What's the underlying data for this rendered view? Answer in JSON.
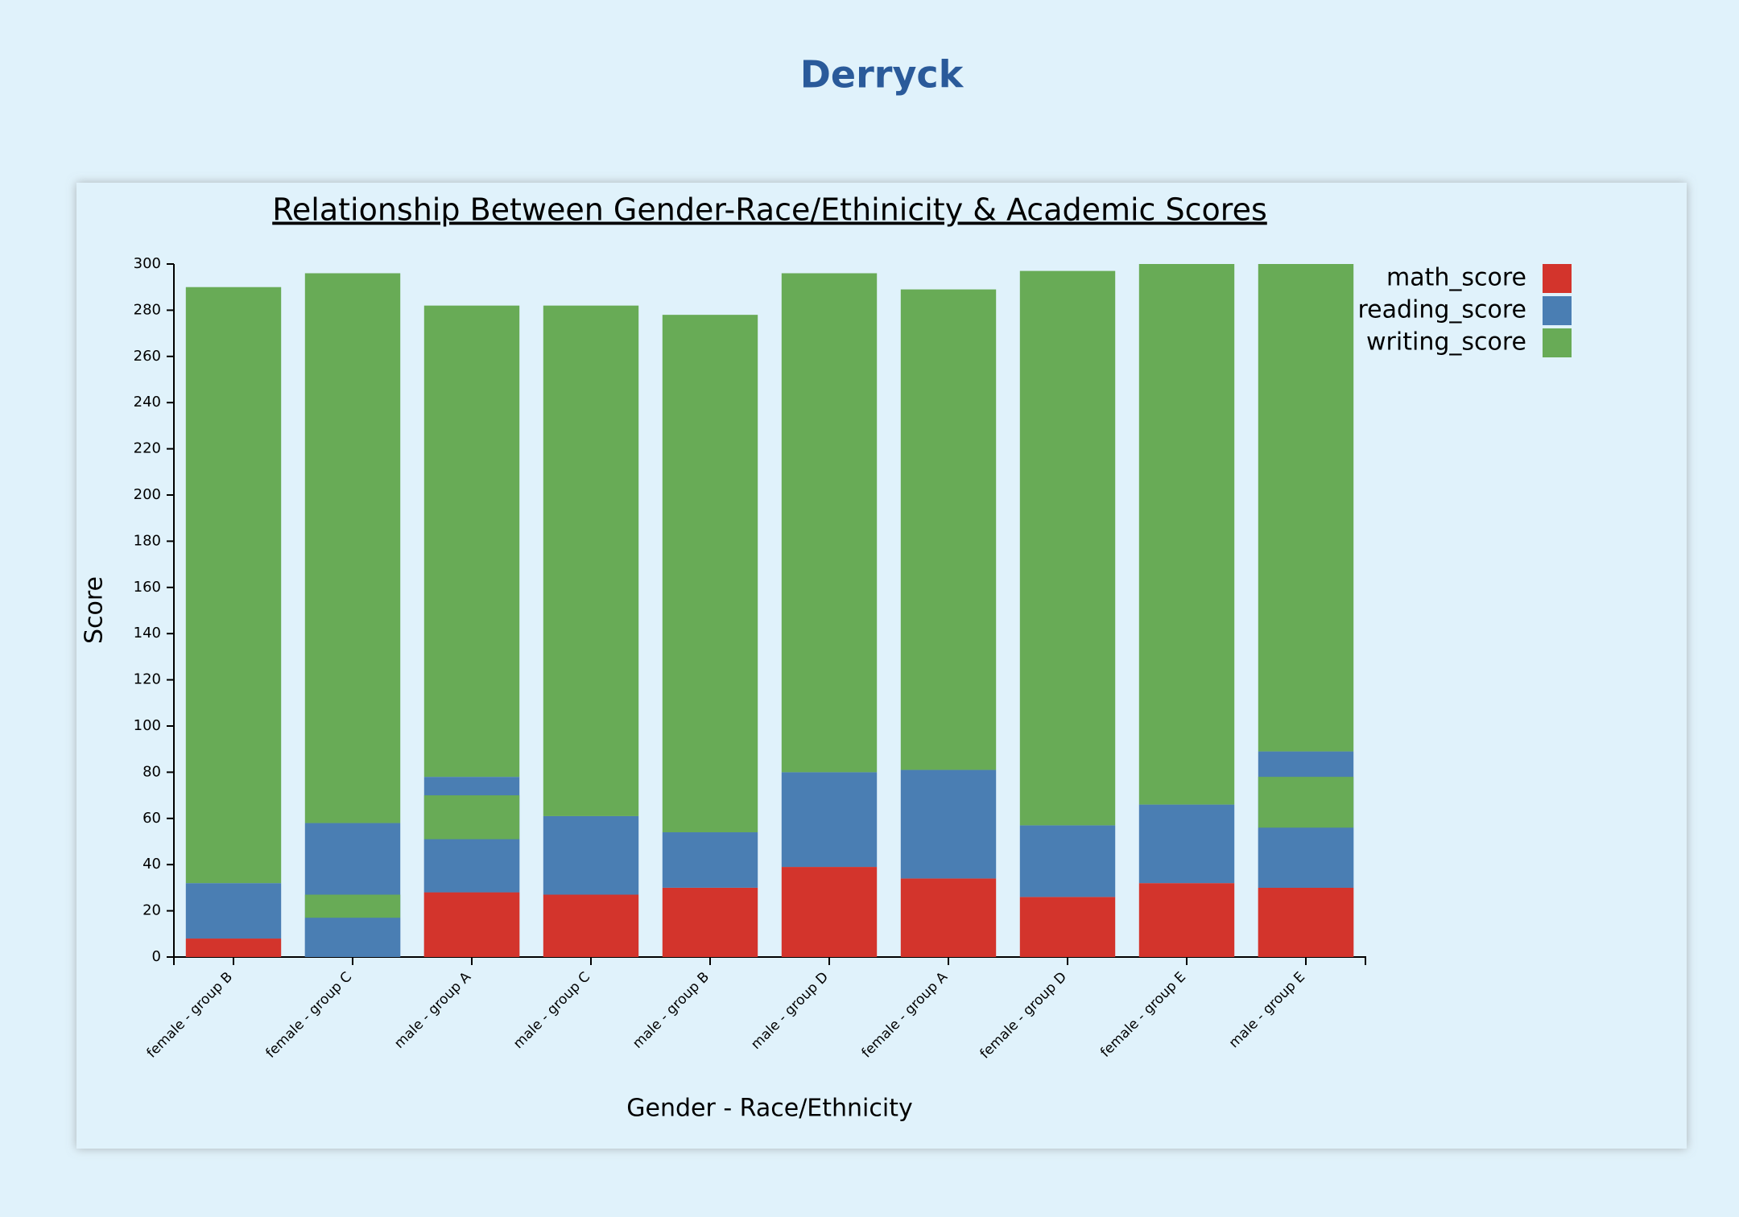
{
  "page_title": "Derryck",
  "chart_data": {
    "type": "bar",
    "stacked": true,
    "title": "Relationship Between Gender-Race/Ethinicity & Academic Scores",
    "x_label": "Gender - Race/Ethnicity",
    "y_label": "Score",
    "categories": [
      "female - group B",
      "female - group C",
      "male - group A",
      "male - group C",
      "male - group B",
      "male - group D",
      "female - group A",
      "female - group D",
      "female - group E",
      "male - group E"
    ],
    "series": [
      {
        "name": "math_score",
        "color": "#d3342c",
        "values": [
          8,
          0,
          28,
          27,
          30,
          39,
          34,
          26,
          32,
          30
        ]
      },
      {
        "name": "reading_score",
        "color": "#4a7eb3",
        "values": [
          24,
          58,
          50,
          34,
          24,
          41,
          47,
          31,
          34,
          59
        ]
      },
      {
        "name": "writing_score",
        "color": "#68ab56",
        "values": [
          258,
          238,
          204,
          221,
          224,
          216,
          208,
          240,
          234,
          211
        ]
      }
    ],
    "overlays": [
      {
        "category_index": 1,
        "values": [
          0,
          17,
          10
        ]
      },
      {
        "category_index": 2,
        "values": [
          28,
          23,
          19
        ]
      },
      {
        "category_index": 9,
        "values": [
          30,
          26,
          22
        ]
      }
    ],
    "ylim": [
      0,
      300
    ],
    "yticks": [
      0,
      20,
      40,
      60,
      80,
      100,
      120,
      140,
      160,
      180,
      200,
      220,
      240,
      260,
      280,
      300
    ],
    "legend": "top-right"
  }
}
